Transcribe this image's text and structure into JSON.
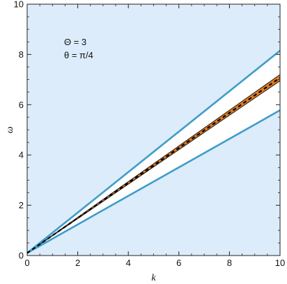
{
  "chart_data": {
    "type": "line",
    "xlabel": "k",
    "ylabel": "ω",
    "xlim": [
      0,
      10
    ],
    "ylim": [
      0,
      10
    ],
    "x_ticks": [
      0,
      2,
      4,
      6,
      8,
      10
    ],
    "y_ticks": [
      0,
      2,
      4,
      6,
      8,
      10
    ],
    "grid": false,
    "annotations": [
      "Θ = 3",
      "θ = π/4"
    ],
    "colors": {
      "background_fill": "#dcecfb",
      "cone_fill": "#ffffff",
      "boundary": "#3f9cc8",
      "band_fill": "#e07a1f",
      "band_edge": "#1a1a1a",
      "dashed": "#000000"
    },
    "series": [
      {
        "kind": "boundary",
        "x": [
          0,
          10
        ],
        "y": [
          0.1,
          8.15
        ]
      },
      {
        "kind": "boundary",
        "x": [
          0,
          10
        ],
        "y": [
          0.1,
          5.78
        ]
      },
      {
        "kind": "band",
        "x": [
          0,
          10
        ],
        "y_upper": [
          0.1,
          7.2
        ],
        "y_lower": [
          0.1,
          6.95
        ]
      },
      {
        "kind": "dashed",
        "x": [
          0,
          10
        ],
        "y": [
          0.1,
          7.07
        ]
      }
    ]
  }
}
